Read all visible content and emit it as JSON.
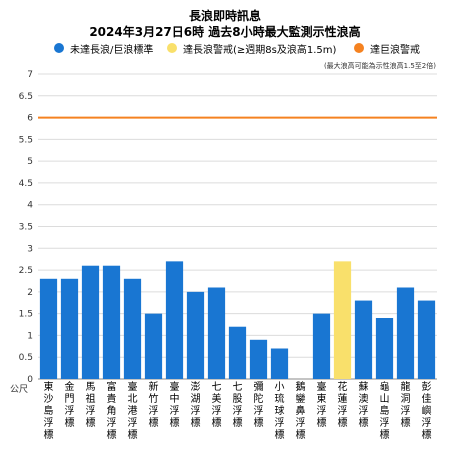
{
  "chart_data": {
    "type": "bar",
    "title": "長浪即時訊息",
    "subtitle": "2024年3月27日6時 過去8小時最大監測示性浪高",
    "ylabel": "公尺",
    "ylim": [
      0,
      7
    ],
    "yticks": [
      0,
      0.5,
      1,
      1.5,
      2,
      2.5,
      3,
      3.5,
      4,
      4.5,
      5,
      5.5,
      6,
      6.5,
      7
    ],
    "grid": true,
    "legend_position": "top",
    "note": "(最大浪高可能為示性浪高1.5至2倍)",
    "legend": [
      {
        "name": "未達長浪/巨浪標準",
        "color": "#1976d2"
      },
      {
        "name": "達長浪警戒(≥週期8s及浪高1.5m)",
        "color": "#f9e06b"
      },
      {
        "name": "達巨浪警戒",
        "color": "#f58220"
      }
    ],
    "threshold": {
      "value": 6,
      "color": "#f58220"
    },
    "categories": [
      "東沙島浮標",
      "金門浮標",
      "馬祖浮標",
      "富貴角浮標",
      "臺北港浮標",
      "新竹浮標",
      "臺中浮標",
      "澎湖浮標",
      "七美浮標",
      "七股浮標",
      "彌陀浮標",
      "小琉球浮標",
      "鵝鑾鼻浮標",
      "臺東浮標",
      "花蓮浮標",
      "蘇澳浮標",
      "龜山島浮標",
      "龍洞浮標",
      "彭佳嶼浮標"
    ],
    "values": [
      2.3,
      2.3,
      2.6,
      2.6,
      2.3,
      1.5,
      2.7,
      2.0,
      2.1,
      1.2,
      0.9,
      0.7,
      null,
      1.5,
      2.7,
      1.8,
      1.4,
      2.1,
      1.8
    ],
    "bar_colors": [
      "#1976d2",
      "#1976d2",
      "#1976d2",
      "#1976d2",
      "#1976d2",
      "#1976d2",
      "#1976d2",
      "#1976d2",
      "#1976d2",
      "#1976d2",
      "#1976d2",
      "#1976d2",
      "#1976d2",
      "#1976d2",
      "#f9e06b",
      "#1976d2",
      "#1976d2",
      "#1976d2",
      "#1976d2"
    ]
  }
}
